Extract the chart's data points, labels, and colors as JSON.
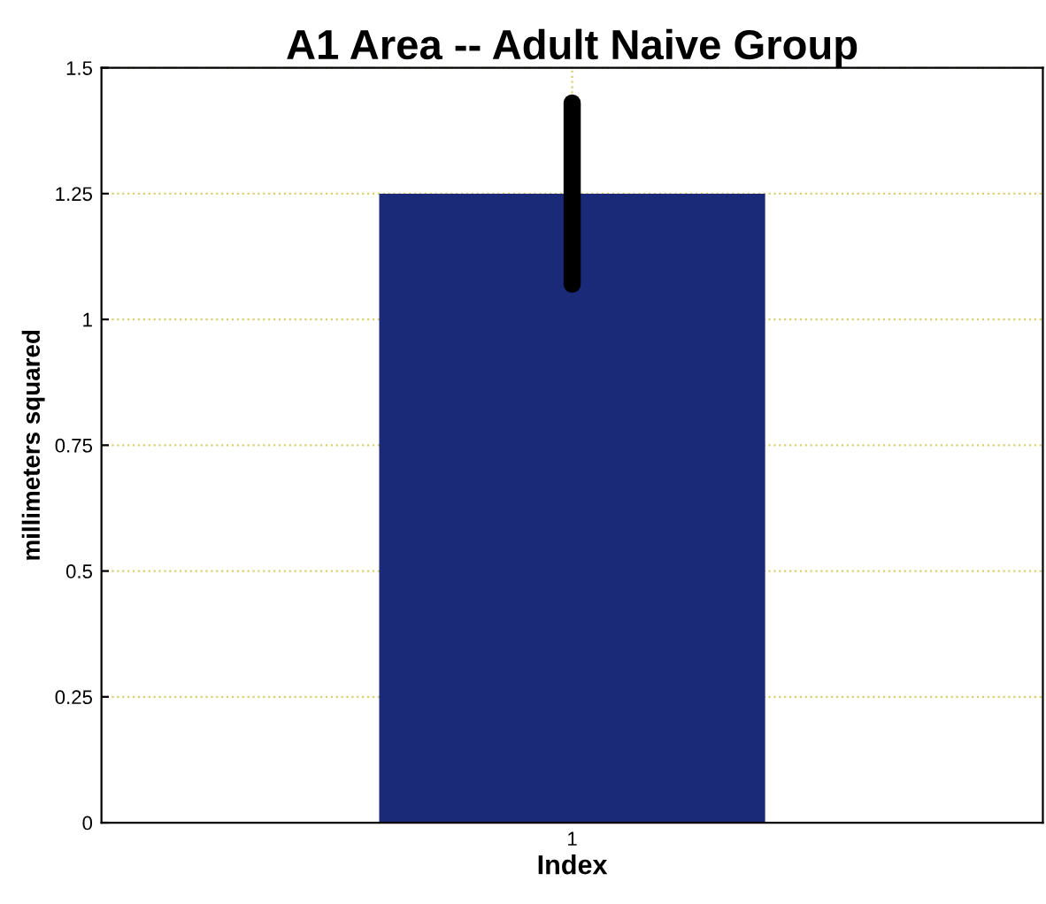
{
  "chart_data": {
    "type": "bar",
    "title": "A1 Area -- Adult Naive Group",
    "xlabel": "Index",
    "ylabel": "millimeters squared",
    "categories": [
      "1"
    ],
    "values": [
      1.25
    ],
    "color": "#1b2a78",
    "errors": [
      0.18
    ],
    "ylim": [
      0,
      1.5
    ],
    "yticks": [
      0,
      0.25,
      0.5,
      0.75,
      1,
      1.25,
      1.5
    ],
    "grid": true
  }
}
